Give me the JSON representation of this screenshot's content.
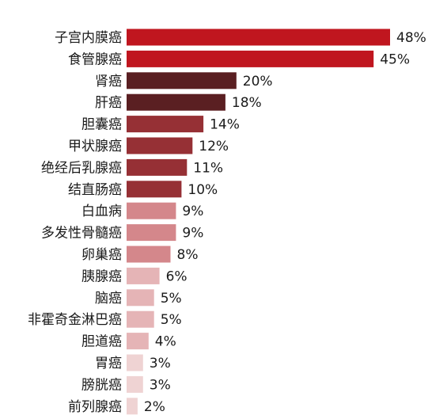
{
  "chart_data": {
    "type": "bar",
    "orientation": "horizontal",
    "title": "",
    "xlabel": "",
    "ylabel": "",
    "grid": false,
    "legend": "none",
    "xlim": [
      0,
      48
    ],
    "categories": [
      "子宫内膜癌",
      "食管腺癌",
      "肾癌",
      "肝癌",
      "胆囊癌",
      "甲状腺癌",
      "绝经后乳腺癌",
      "结直肠癌",
      "白血病",
      "多发性骨髓癌",
      "卵巢癌",
      "胰腺癌",
      "脑癌",
      "非霍奇金淋巴癌",
      "胆道癌",
      "胃癌",
      "膀胱癌",
      "前列腺癌"
    ],
    "values": [
      48,
      45,
      20,
      18,
      14,
      12,
      11,
      10,
      9,
      9,
      8,
      6,
      5,
      5,
      4,
      3,
      3,
      2
    ],
    "value_labels": [
      "48%",
      "45%",
      "20%",
      "18%",
      "14%",
      "12%",
      "11%",
      "10%",
      "9%",
      "9%",
      "8%",
      "6%",
      "5%",
      "5%",
      "4%",
      "3%",
      "3%",
      "2%"
    ],
    "colors": [
      "#c0161f",
      "#c0161f",
      "#5a1f22",
      "#5a1f22",
      "#963035",
      "#963035",
      "#963035",
      "#963035",
      "#d4878b",
      "#d4878b",
      "#d4878b",
      "#e5b4b6",
      "#e5b4b6",
      "#e5b4b6",
      "#e5b4b6",
      "#efd3d3",
      "#efd3d3",
      "#efd3d3"
    ]
  }
}
